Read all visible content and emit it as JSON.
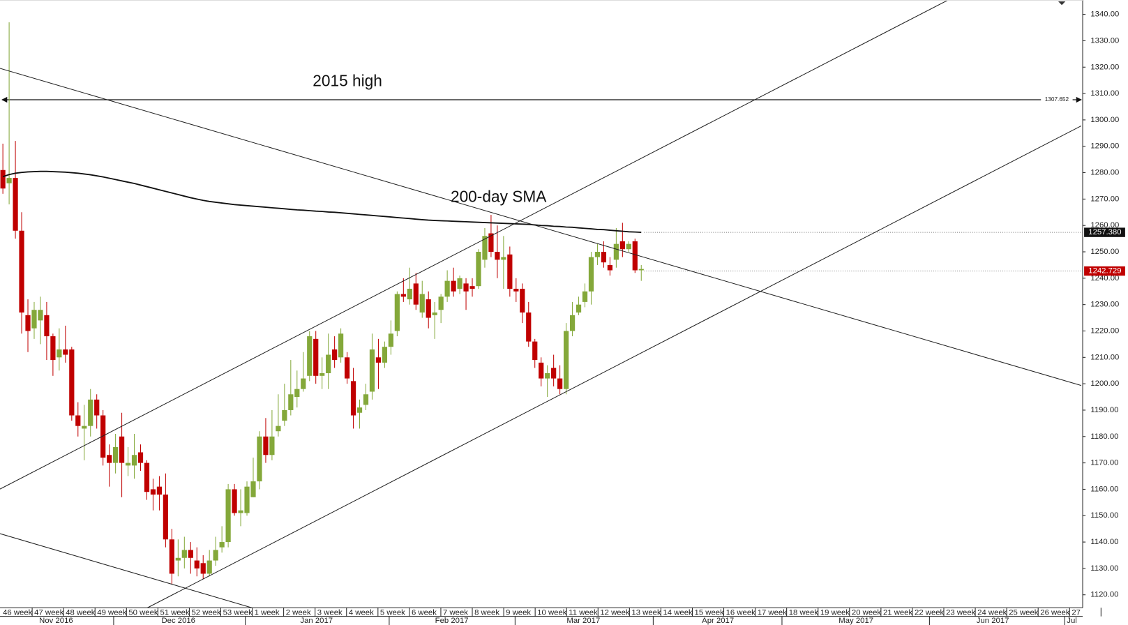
{
  "chart_data": {
    "type": "candlestick",
    "up_color": "#84a83a",
    "down_color": "#c00000",
    "open": [
      1281,
      1276,
      1278,
      1258,
      1226,
      1221,
      1224,
      1226,
      1218,
      1210,
      1213,
      1213,
      1188,
      1183,
      1184,
      1194,
      1188,
      1173,
      1170,
      1180,
      1169,
      1169,
      1174,
      1170,
      1160,
      1161,
      1158,
      1141,
      1133,
      1134,
      1137,
      1133,
      1132,
      1128,
      1133,
      1138,
      1140,
      1160,
      1151,
      1151,
      1157,
      1163,
      1180,
      1173,
      1182,
      1186,
      1190,
      1195,
      1198,
      1203,
      1217,
      1203,
      1204,
      1213,
      1210,
      1210,
      1201,
      1189,
      1192,
      1197,
      1210,
      1208,
      1214,
      1220,
      1234,
      1232,
      1238,
      1227,
      1232,
      1226,
      1228,
      1233,
      1239,
      1236,
      1238,
      1237,
      1237,
      1247,
      1257,
      1250,
      1247,
      1249,
      1236,
      1236,
      1227,
      1216,
      1208,
      1202,
      1206,
      1202,
      1198,
      1220,
      1227,
      1231,
      1235,
      1248,
      1250,
      1245,
      1247,
      1254,
      1251,
      1254,
      1243
    ],
    "high": [
      1291,
      1337,
      1292,
      1265,
      1232,
      1231,
      1233,
      1231,
      1219,
      1221,
      1222,
      1214,
      1193,
      1192,
      1198,
      1196,
      1190,
      1177,
      1181,
      1189,
      1176,
      1181,
      1177,
      1171,
      1164,
      1165,
      1166,
      1145,
      1141,
      1142,
      1140,
      1138,
      1135,
      1137,
      1142,
      1146,
      1162,
      1162,
      1160,
      1163,
      1172,
      1182,
      1187,
      1190,
      1196,
      1200,
      1209,
      1205,
      1212,
      1220,
      1220,
      1210,
      1219,
      1218,
      1221,
      1212,
      1206,
      1194,
      1200,
      1219,
      1217,
      1216,
      1224,
      1235,
      1240,
      1244,
      1242,
      1239,
      1235,
      1231,
      1234,
      1243,
      1244,
      1241,
      1240,
      1240,
      1251,
      1259,
      1264,
      1260,
      1256,
      1252,
      1240,
      1238,
      1231,
      1217,
      1210,
      1207,
      1211,
      1207,
      1223,
      1231,
      1233,
      1238,
      1250,
      1253,
      1254,
      1248,
      1259,
      1261,
      1254,
      1255,
      1245
    ],
    "low": [
      1272,
      1268,
      1255,
      1219,
      1212,
      1217,
      1215,
      1209,
      1203,
      1205,
      1208,
      1186,
      1180,
      1171,
      1180,
      1183,
      1169,
      1161,
      1166,
      1157,
      1165,
      1164,
      1167,
      1156,
      1152,
      1152,
      1138,
      1124,
      1127,
      1130,
      1128,
      1127,
      1126,
      1127,
      1131,
      1136,
      1138,
      1150,
      1146,
      1150,
      1157,
      1160,
      1170,
      1171,
      1180,
      1184,
      1188,
      1191,
      1197,
      1201,
      1200,
      1198,
      1198,
      1206,
      1208,
      1200,
      1183,
      1183,
      1190,
      1194,
      1198,
      1206,
      1211,
      1218,
      1231,
      1230,
      1228,
      1225,
      1221,
      1217,
      1223,
      1231,
      1233,
      1234,
      1228,
      1233,
      1236,
      1244,
      1248,
      1240,
      1236,
      1233,
      1231,
      1223,
      1214,
      1206,
      1199,
      1195,
      1199,
      1196,
      1196,
      1218,
      1226,
      1229,
      1230,
      1245,
      1244,
      1241,
      1244,
      1248,
      1250,
      1242,
      1239
    ],
    "close": [
      1274,
      1278,
      1258,
      1227,
      1220,
      1228,
      1228,
      1218,
      1209,
      1213,
      1211,
      1188,
      1184,
      1184,
      1194,
      1188,
      1172,
      1170,
      1176,
      1170,
      1170,
      1173,
      1170,
      1159,
      1158,
      1158,
      1141,
      1128,
      1134,
      1137,
      1134,
      1130,
      1128,
      1133,
      1137,
      1140,
      1160,
      1151,
      1152,
      1161,
      1163,
      1180,
      1173,
      1180,
      1184,
      1190,
      1196,
      1198,
      1202,
      1218,
      1203,
      1204,
      1211,
      1209,
      1219,
      1202,
      1188,
      1191,
      1196,
      1213,
      1208,
      1214,
      1219,
      1234,
      1233,
      1236,
      1230,
      1234,
      1225,
      1227,
      1233,
      1239,
      1235,
      1240,
      1235,
      1236,
      1250,
      1256,
      1250,
      1247,
      1248,
      1236,
      1235,
      1227,
      1216,
      1209,
      1202,
      1204,
      1202,
      1198,
      1220,
      1226,
      1230,
      1235,
      1248,
      1250,
      1246,
      1243,
      1253,
      1251,
      1253,
      1243,
      1243.5
    ],
    "sma": {
      "color": "#111111",
      "values": [
        1278.5,
        1279.3,
        1279.8,
        1280.1,
        1280.3,
        1280.4,
        1280.5,
        1280.5,
        1280.4,
        1280.3,
        1280.2,
        1280.0,
        1279.8,
        1279.5,
        1279.2,
        1278.8,
        1278.4,
        1277.9,
        1277.4,
        1276.9,
        1276.4,
        1275.9,
        1275.3,
        1274.7,
        1274.1,
        1273.5,
        1272.9,
        1272.3,
        1271.7,
        1271.1,
        1270.5,
        1270.0,
        1269.5,
        1269.1,
        1268.8,
        1268.5,
        1268.2,
        1267.9,
        1267.7,
        1267.5,
        1267.3,
        1267.1,
        1266.9,
        1266.7,
        1266.5,
        1266.3,
        1266.1,
        1265.9,
        1265.8,
        1265.6,
        1265.4,
        1265.3,
        1265.1,
        1265.0,
        1264.8,
        1264.6,
        1264.4,
        1264.2,
        1264.0,
        1263.8,
        1263.6,
        1263.4,
        1263.2,
        1263.0,
        1262.8,
        1262.6,
        1262.4,
        1262.2,
        1262.0,
        1261.9,
        1261.8,
        1261.7,
        1261.6,
        1261.5,
        1261.4,
        1261.3,
        1261.2,
        1261.1,
        1261.0,
        1260.9,
        1260.8,
        1260.7,
        1260.6,
        1260.5,
        1260.4,
        1260.2,
        1260.0,
        1259.9,
        1259.7,
        1259.6,
        1259.4,
        1259.3,
        1259.1,
        1258.9,
        1258.7,
        1258.5,
        1258.4,
        1258.2,
        1258.0,
        1257.8,
        1257.6,
        1257.5,
        1257.4
      ]
    },
    "ylim": [
      1115.1,
      1345.45
    ],
    "yticks": [
      {
        "value": 1120,
        "label": "1120.00"
      },
      {
        "value": 1130,
        "label": "1130.00"
      },
      {
        "value": 1140,
        "label": "1140.00"
      },
      {
        "value": 1150,
        "label": "1150.00"
      },
      {
        "value": 1160,
        "label": "1160.00"
      },
      {
        "value": 1170,
        "label": "1170.00"
      },
      {
        "value": 1180,
        "label": "1180.00"
      },
      {
        "value": 1190,
        "label": "1190.00"
      },
      {
        "value": 1200,
        "label": "1200.00"
      },
      {
        "value": 1210,
        "label": "1210.00"
      },
      {
        "value": 1220,
        "label": "1220.00"
      },
      {
        "value": 1230,
        "label": "1230.00"
      },
      {
        "value": 1240,
        "label": "1240.00"
      },
      {
        "value": 1250,
        "label": "1250.00"
      },
      {
        "value": 1260,
        "label": "1260.00"
      },
      {
        "value": 1270,
        "label": "1270.00"
      },
      {
        "value": 1280,
        "label": "1280.00"
      },
      {
        "value": 1290,
        "label": "1290.00"
      },
      {
        "value": 1300,
        "label": "1300.00"
      },
      {
        "value": 1310,
        "label": "1310.00"
      },
      {
        "value": 1320,
        "label": "1320.00"
      },
      {
        "value": 1330,
        "label": "1330.00"
      },
      {
        "value": 1340,
        "label": "1340.00"
      }
    ],
    "week_labels": [
      "46 week",
      "47 week",
      "48 week",
      "49 week",
      "50 week",
      "51 week",
      "52 week",
      "53 week",
      "1 week",
      "2 week",
      "3 week",
      "4 week",
      "5 week",
      "6 week",
      "7 week",
      "8 week",
      "9 week",
      "10 week",
      "11 week",
      "12 week",
      "13 week",
      "14 week",
      "15 week",
      "16 week",
      "17 week",
      "18 week",
      "19 week",
      "20 week",
      "21 week",
      "22 week",
      "23 week",
      "24 week",
      "25 week",
      "26 week",
      "27"
    ],
    "month_labels": [
      "Nov 2016",
      "Dec 2016",
      "Jan 2017",
      "Feb 2017",
      "Mar 2017",
      "Apr 2017",
      "May 2017",
      "Jun 2017",
      "Jul"
    ],
    "high_2015": 1307.652,
    "sma_last": {
      "value": 1257.38,
      "label": "1257.380"
    },
    "last_price": 1242.729,
    "annotations": [
      "2015 high",
      "200-day SMA"
    ]
  }
}
